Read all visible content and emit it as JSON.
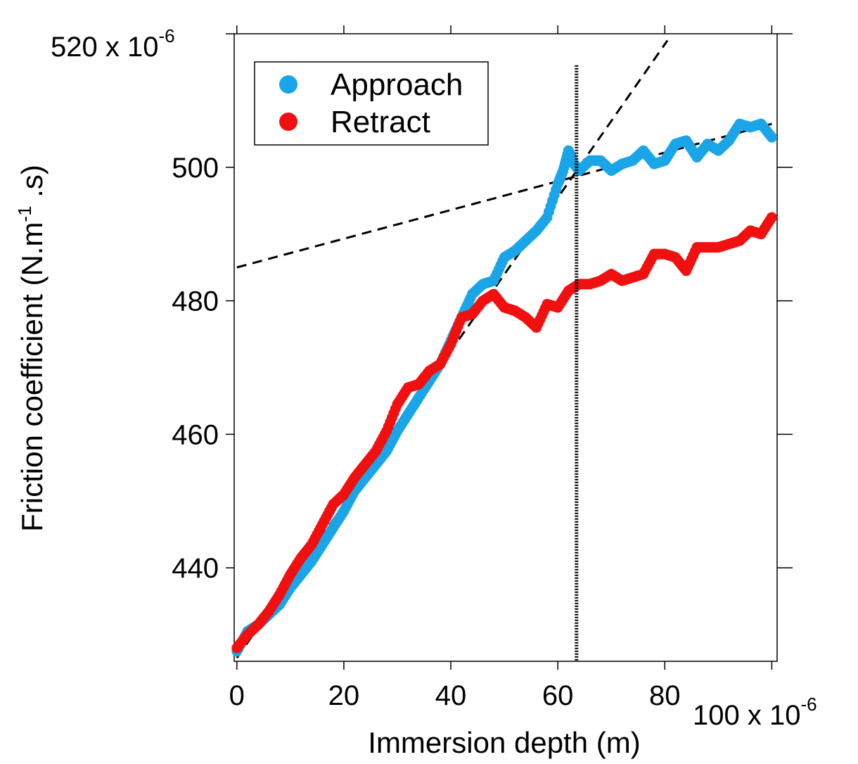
{
  "chart_data": {
    "type": "scatter",
    "title": "",
    "xlabel": "Immersion depth (m)",
    "ylabel": {
      "prefix": "Friction coefficient (N.m",
      "exponent": "-1",
      "suffix": " .s)"
    },
    "x_multiplier": {
      "text": "100 x 10",
      "exponent": "-6"
    },
    "y_multiplier": {
      "text": "520 x 10",
      "exponent": "-6"
    },
    "xlim": [
      -0.5,
      101
    ],
    "ylim": [
      426,
      520
    ],
    "x_ticks": [
      0,
      20,
      40,
      60,
      80
    ],
    "x_tick_labels": [
      "0",
      "20",
      "40",
      "60",
      "80"
    ],
    "y_ticks": [
      440,
      460,
      480,
      500
    ],
    "y_tick_labels": [
      "440",
      "460",
      "480",
      "500"
    ],
    "grid": false,
    "legend": {
      "position": "top-left",
      "entries": [
        "Approach",
        "Retract"
      ]
    },
    "series": [
      {
        "name": "Approach",
        "color": "#1aa5e8",
        "x": [
          0,
          2,
          4,
          6,
          8,
          10,
          12,
          14,
          16,
          18,
          20,
          22,
          24,
          26,
          28,
          30,
          32,
          34,
          36,
          38,
          40,
          42,
          44,
          46,
          48,
          50,
          52,
          54,
          56,
          58,
          60,
          61,
          62,
          63,
          64,
          66,
          68,
          70,
          72,
          74,
          76,
          78,
          80,
          82,
          84,
          86,
          88,
          90,
          92,
          94,
          96,
          98,
          100
        ],
        "y": [
          427.5,
          430.5,
          431.5,
          433,
          434.5,
          437,
          439,
          441,
          443.5,
          446,
          448.5,
          451.5,
          453.5,
          455.5,
          457.5,
          460.5,
          463,
          465.5,
          468,
          470.5,
          474,
          477.5,
          481,
          482.5,
          483,
          486.5,
          487.5,
          489,
          490.5,
          492.5,
          497.5,
          499.5,
          502.5,
          500.5,
          499.5,
          501,
          501,
          499.5,
          500.5,
          501,
          502.5,
          500.5,
          501,
          503.5,
          504,
          501.5,
          503.5,
          502.5,
          504,
          506.5,
          506,
          506.5,
          504.5
        ]
      },
      {
        "name": "Retract",
        "color": "#f01010",
        "x": [
          0,
          2,
          4,
          6,
          8,
          10,
          12,
          14,
          16,
          18,
          20,
          22,
          24,
          26,
          28,
          30,
          32,
          34,
          36,
          38,
          40,
          42,
          44,
          46,
          48,
          50,
          52,
          54,
          56,
          58,
          60,
          62,
          64,
          66,
          68,
          70,
          72,
          74,
          76,
          78,
          80,
          82,
          84,
          86,
          88,
          90,
          92,
          94,
          96,
          98,
          100
        ],
        "y": [
          428,
          430,
          431.5,
          433.5,
          436,
          439,
          441.5,
          443.5,
          446.5,
          449.5,
          451,
          453.5,
          455.5,
          457.5,
          460.5,
          464.5,
          467,
          467.5,
          469.5,
          470.5,
          473.5,
          477.5,
          478,
          480,
          481,
          479,
          478.5,
          477.5,
          476,
          479.5,
          479,
          481.5,
          482.5,
          482.5,
          483,
          484,
          483,
          483.5,
          484,
          487,
          487,
          486.5,
          484.5,
          488,
          488,
          488,
          488.5,
          489,
          490.5,
          490,
          492.5
        ]
      }
    ],
    "annotations": {
      "vertical_line_x": 63.5,
      "fit_lines": [
        {
          "style": "dashed",
          "x": [
            0,
            80.5
          ],
          "y": [
            426.5,
            519
          ]
        },
        {
          "style": "dashed",
          "x": [
            0,
            100
          ],
          "y": [
            485,
            506.5
          ]
        }
      ]
    }
  }
}
